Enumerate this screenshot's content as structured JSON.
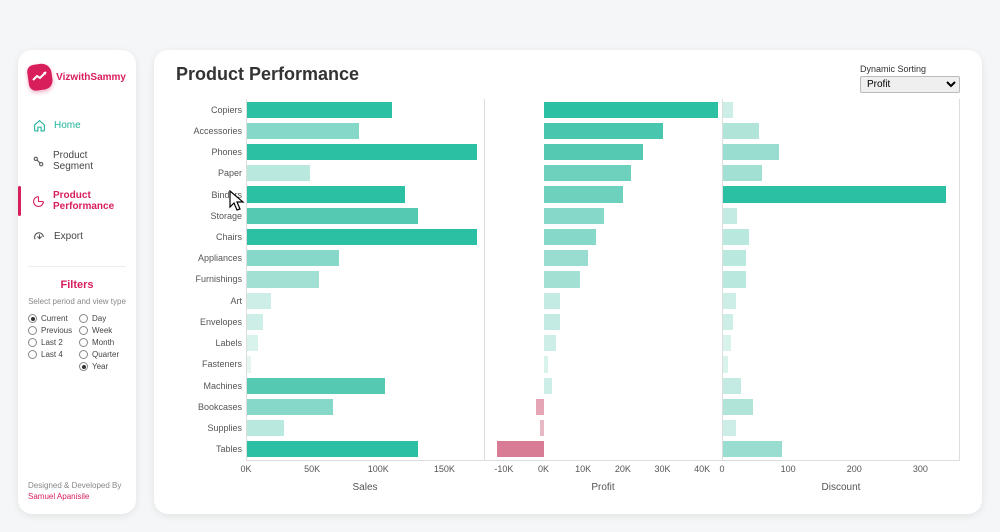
{
  "brand": {
    "name": "VizwithSammy"
  },
  "nav": {
    "home": "Home",
    "segment": "Product Segment",
    "performance": "Product Performance",
    "export": "Export"
  },
  "filters": {
    "title": "Filters",
    "subtitle": "Select period and view type",
    "period": [
      {
        "label": "Current",
        "selected": true
      },
      {
        "label": "Previous",
        "selected": false
      },
      {
        "label": "Last 2",
        "selected": false
      },
      {
        "label": "Last 4",
        "selected": false
      }
    ],
    "view": [
      {
        "label": "Day",
        "selected": false
      },
      {
        "label": "Week",
        "selected": false
      },
      {
        "label": "Month",
        "selected": false
      },
      {
        "label": "Quarter",
        "selected": false
      },
      {
        "label": "Year",
        "selected": true
      }
    ]
  },
  "credit": {
    "line1": "Designed & Developed By",
    "name": "Samuel Apanisile"
  },
  "page": {
    "title": "Product Performance",
    "sort_label": "Dynamic Sorting",
    "sort_value": "Profit"
  },
  "chart": {
    "categories": [
      "Copiers",
      "Accessories",
      "Phones",
      "Paper",
      "Binders",
      "Storage",
      "Chairs",
      "Appliances",
      "Furnishings",
      "Art",
      "Envelopes",
      "Labels",
      "Fasteners",
      "Machines",
      "Bookcases",
      "Supplies",
      "Tables"
    ],
    "panels": {
      "sales": {
        "label": "Sales",
        "min": 0,
        "max": 180,
        "ticks": [
          0,
          50,
          100,
          150
        ],
        "tick_labels": [
          "0K",
          "50K",
          "100K",
          "150K"
        ],
        "values": [
          110,
          85,
          175,
          48,
          120,
          130,
          175,
          70,
          55,
          18,
          12,
          8,
          3,
          105,
          65,
          28,
          130
        ],
        "colors": [
          "#2bbfa3",
          "#86d8c8",
          "#2bbfa3",
          "#b9e8df",
          "#2bbfa3",
          "#56c9b2",
          "#2bbfa3",
          "#86d8c8",
          "#a3e0d4",
          "#cdeee7",
          "#cdeee7",
          "#d8f2ec",
          "#e5f6f2",
          "#56c9b2",
          "#86d8c8",
          "#b9e8df",
          "#2bbfa3"
        ]
      },
      "profit": {
        "label": "Profit",
        "min": -15,
        "max": 45,
        "ticks": [
          -10,
          0,
          10,
          20,
          30,
          40
        ],
        "tick_labels": [
          "-10K",
          "0K",
          "10K",
          "20K",
          "30K",
          "40K"
        ],
        "values": [
          44,
          30,
          25,
          22,
          20,
          15,
          13,
          11,
          9,
          4,
          4,
          3,
          1,
          2,
          -2,
          -1,
          -12
        ],
        "colors": [
          "#2bbfa3",
          "#48c6ae",
          "#56c9b2",
          "#6ed1bd",
          "#6ed1bd",
          "#86d8c8",
          "#86d8c8",
          "#98ddcf",
          "#a3e0d4",
          "#c3ebe3",
          "#c3ebe3",
          "#cdeee7",
          "#d8f2ec",
          "#cdeee7",
          "#e6a5b4",
          "#e6b9c4",
          "#d87b94"
        ]
      },
      "discount": {
        "label": "Discount",
        "min": 0,
        "max": 360,
        "ticks": [
          0,
          100,
          200,
          300
        ],
        "tick_labels": [
          "0",
          "100",
          "200",
          "300"
        ],
        "values": [
          15,
          55,
          85,
          60,
          340,
          22,
          40,
          35,
          35,
          20,
          15,
          12,
          8,
          28,
          45,
          20,
          90
        ],
        "colors": [
          "#cdeee7",
          "#b0e4d9",
          "#98ddcf",
          "#a3e0d4",
          "#2bbfa3",
          "#c3ebe3",
          "#b9e8df",
          "#b9e8df",
          "#b9e8df",
          "#cdeee7",
          "#cdeee7",
          "#d8f2ec",
          "#d8f2ec",
          "#c3ebe3",
          "#b0e4d9",
          "#cdeee7",
          "#98ddcf"
        ]
      }
    },
    "background": "#ffffff",
    "axis_color": "#dddddd",
    "label_color": "#555555",
    "neg_color_family": "#d87b94"
  }
}
